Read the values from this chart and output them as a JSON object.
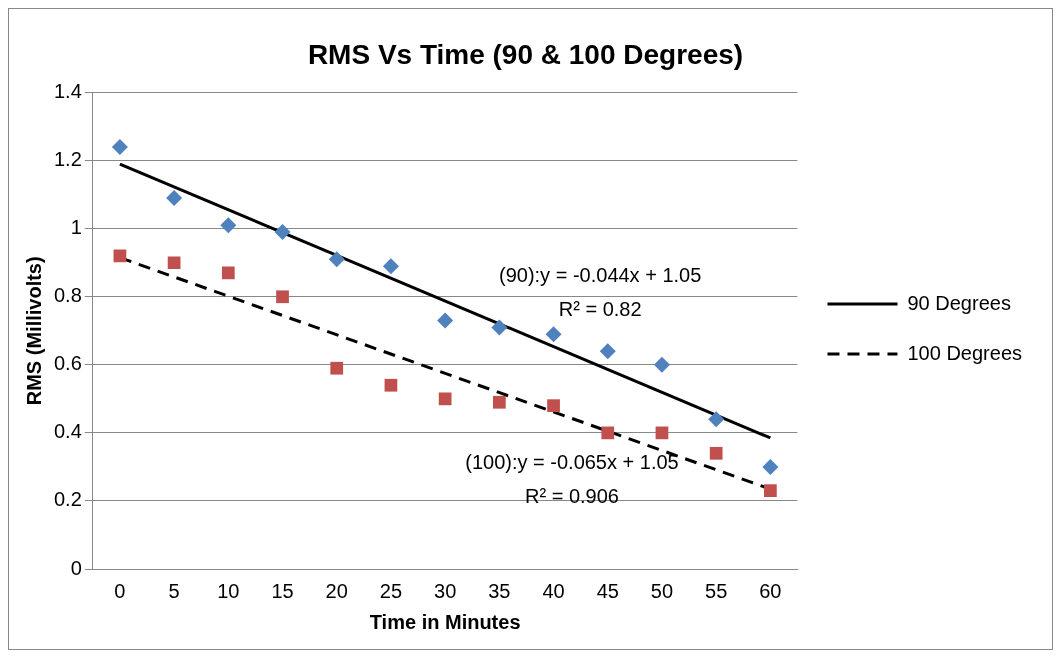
{
  "chart_data": {
    "type": "scatter",
    "title": "RMS Vs Time (90 & 100 Degrees)",
    "xlabel": "Time in Minutes",
    "ylabel": "RMS (Millivolts)",
    "categories": [
      "0",
      "5",
      "10",
      "15",
      "20",
      "25",
      "30",
      "35",
      "40",
      "45",
      "50",
      "55",
      "60"
    ],
    "series": [
      {
        "type": "scatter",
        "color": "#4f81bd",
        "marker": "diamond",
        "values": [
          1.24,
          1.09,
          1.01,
          0.99,
          0.91,
          0.89,
          0.73,
          0.71,
          0.69,
          0.64,
          0.6,
          0.44,
          0.3
        ]
      },
      {
        "type": "scatter",
        "color": "#c0504d",
        "marker": "square",
        "values": [
          0.92,
          0.9,
          0.87,
          0.8,
          0.59,
          0.54,
          0.5,
          0.49,
          0.48,
          0.4,
          0.4,
          0.34,
          0.23
        ]
      },
      {
        "type": "line",
        "name": "90 Degrees",
        "color": "#000000",
        "line_style": "solid",
        "marker": "none",
        "x": [
          "0",
          "60"
        ],
        "values": [
          1.19,
          0.385
        ]
      },
      {
        "type": "line",
        "name": "100 Degrees",
        "color": "#000000",
        "line_style": "dashed",
        "marker": "none",
        "x": [
          "0",
          "60"
        ],
        "values": [
          0.915,
          0.235
        ]
      }
    ],
    "ylim": [
      0,
      1.4
    ],
    "yticks": [
      0,
      0.2,
      0.4,
      0.6,
      0.8,
      1,
      1.2,
      1.4
    ],
    "grid": "y",
    "legend": "right",
    "annotations": [
      "(90):y = -0.044x + 1.05",
      "R² = 0.82",
      "(100):y = -0.065x + 1.05",
      "R² = 0.906"
    ]
  }
}
